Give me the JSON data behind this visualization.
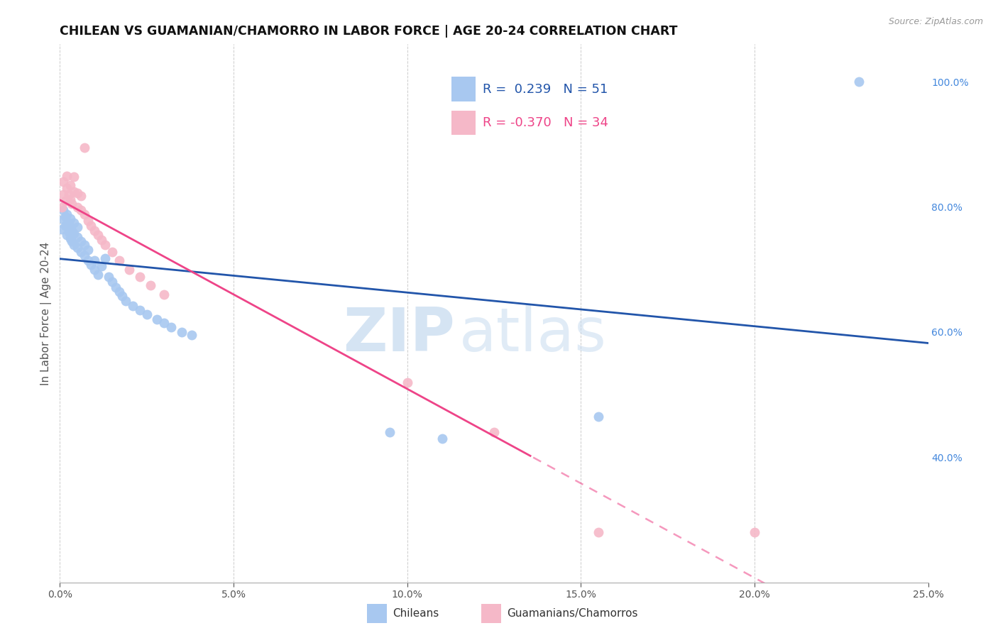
{
  "title": "CHILEAN VS GUAMANIAN/CHAMORRO IN LABOR FORCE | AGE 20-24 CORRELATION CHART",
  "source": "Source: ZipAtlas.com",
  "ylabel": "In Labor Force | Age 20-24",
  "ylabel_right_ticks": [
    "40.0%",
    "60.0%",
    "80.0%",
    "100.0%"
  ],
  "ylabel_right_vals": [
    0.4,
    0.6,
    0.8,
    1.0
  ],
  "legend_r_blue": "0.239",
  "legend_n_blue": "51",
  "legend_r_pink": "-0.370",
  "legend_n_pink": "34",
  "blue_color": "#A8C8F0",
  "pink_color": "#F5B8C8",
  "line_blue": "#2255AA",
  "line_pink": "#EE4488",
  "watermark_zip": "ZIP",
  "watermark_atlas": "atlas",
  "xmin": 0.0,
  "xmax": 0.25,
  "ymin": 0.2,
  "ymax": 1.06,
  "blue_x": [
    0.0005,
    0.001,
    0.001,
    0.0015,
    0.0015,
    0.002,
    0.002,
    0.002,
    0.0025,
    0.0025,
    0.003,
    0.003,
    0.003,
    0.0035,
    0.0035,
    0.004,
    0.004,
    0.004,
    0.005,
    0.005,
    0.005,
    0.006,
    0.006,
    0.007,
    0.007,
    0.008,
    0.008,
    0.009,
    0.01,
    0.01,
    0.011,
    0.012,
    0.013,
    0.014,
    0.015,
    0.016,
    0.017,
    0.018,
    0.019,
    0.021,
    0.023,
    0.025,
    0.028,
    0.03,
    0.032,
    0.035,
    0.038,
    0.095,
    0.11,
    0.155,
    0.23
  ],
  "blue_y": [
    0.765,
    0.78,
    0.795,
    0.77,
    0.785,
    0.755,
    0.772,
    0.788,
    0.76,
    0.775,
    0.75,
    0.768,
    0.782,
    0.745,
    0.762,
    0.74,
    0.758,
    0.775,
    0.735,
    0.752,
    0.768,
    0.728,
    0.745,
    0.722,
    0.74,
    0.715,
    0.732,
    0.708,
    0.7,
    0.715,
    0.692,
    0.705,
    0.718,
    0.688,
    0.68,
    0.672,
    0.665,
    0.658,
    0.65,
    0.642,
    0.635,
    0.628,
    0.62,
    0.615,
    0.608,
    0.6,
    0.595,
    0.44,
    0.43,
    0.465,
    1.0
  ],
  "pink_x": [
    0.0005,
    0.001,
    0.001,
    0.0015,
    0.002,
    0.002,
    0.0025,
    0.003,
    0.003,
    0.0035,
    0.004,
    0.004,
    0.005,
    0.005,
    0.006,
    0.006,
    0.007,
    0.007,
    0.008,
    0.009,
    0.01,
    0.011,
    0.012,
    0.013,
    0.015,
    0.017,
    0.02,
    0.023,
    0.026,
    0.03,
    0.1,
    0.125,
    0.155,
    0.2
  ],
  "pink_y": [
    0.8,
    0.82,
    0.84,
    0.81,
    0.83,
    0.85,
    0.82,
    0.812,
    0.835,
    0.805,
    0.825,
    0.848,
    0.8,
    0.822,
    0.795,
    0.818,
    0.788,
    0.895,
    0.778,
    0.77,
    0.762,
    0.755,
    0.748,
    0.74,
    0.728,
    0.715,
    0.7,
    0.688,
    0.675,
    0.66,
    0.52,
    0.44,
    0.28,
    0.28
  ]
}
